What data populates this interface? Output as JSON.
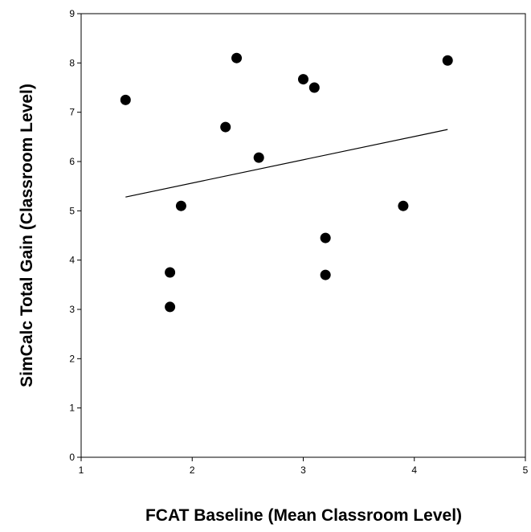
{
  "chart_data": {
    "type": "scatter",
    "title": "",
    "xlabel": "FCAT Baseline (Mean Classroom Level)",
    "ylabel": "SimCalc Total Gain (Classroom Level)",
    "xlim": [
      1,
      5
    ],
    "ylim": [
      0,
      9
    ],
    "xticks": [
      "1",
      "2",
      "3",
      "4",
      "5"
    ],
    "yticks": [
      "0",
      "1",
      "2",
      "3",
      "4",
      "5",
      "6",
      "7",
      "8",
      "9"
    ],
    "grid": false,
    "legend": "none",
    "marker_color": "#000000",
    "points": [
      {
        "x": 1.4,
        "y": 7.25
      },
      {
        "x": 1.8,
        "y": 3.75
      },
      {
        "x": 1.8,
        "y": 3.05
      },
      {
        "x": 1.9,
        "y": 5.1
      },
      {
        "x": 2.3,
        "y": 6.7
      },
      {
        "x": 2.4,
        "y": 8.1
      },
      {
        "x": 2.6,
        "y": 6.08
      },
      {
        "x": 3.0,
        "y": 7.67
      },
      {
        "x": 3.1,
        "y": 7.5
      },
      {
        "x": 3.2,
        "y": 4.45
      },
      {
        "x": 3.2,
        "y": 3.7
      },
      {
        "x": 3.9,
        "y": 5.1
      },
      {
        "x": 4.3,
        "y": 8.05
      }
    ],
    "trendline": {
      "x": [
        1.4,
        4.3
      ],
      "y": [
        5.28,
        6.65
      ]
    }
  }
}
